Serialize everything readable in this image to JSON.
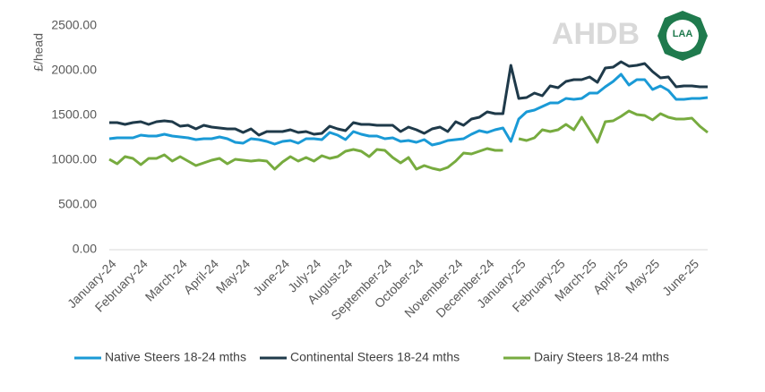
{
  "chart_data": {
    "type": "line",
    "y_label": "£/head",
    "watermark": "AHDB",
    "badge": "LAA",
    "categories": [
      "January-24",
      null,
      null,
      null,
      "February-24",
      null,
      null,
      null,
      null,
      "March-24",
      null,
      null,
      null,
      "April-24",
      null,
      null,
      null,
      "May-24",
      null,
      null,
      null,
      null,
      "June-24",
      null,
      null,
      null,
      "July-24",
      null,
      null,
      null,
      "August-24",
      null,
      null,
      null,
      null,
      "September-24",
      null,
      null,
      null,
      "October-24",
      null,
      null,
      null,
      null,
      "November-24",
      null,
      null,
      null,
      "December-24",
      null,
      null,
      null,
      "January-25",
      null,
      null,
      null,
      null,
      "February-25",
      null,
      null,
      null,
      "March-25",
      null,
      null,
      null,
      "April-25",
      null,
      null,
      null,
      "May-25",
      null,
      null,
      null,
      null,
      "June-25",
      null,
      null
    ],
    "series": [
      {
        "name": "Native Steers 18-24 mths",
        "color": "#1a9ad6",
        "values": [
          1240,
          1250,
          1250,
          1250,
          1280,
          1270,
          1270,
          1290,
          1270,
          1260,
          1250,
          1230,
          1240,
          1240,
          1260,
          1240,
          1200,
          1190,
          1240,
          1230,
          1210,
          1180,
          1210,
          1220,
          1190,
          1240,
          1240,
          1230,
          1310,
          1280,
          1230,
          1320,
          1290,
          1270,
          1270,
          1240,
          1250,
          1210,
          1220,
          1200,
          1230,
          1170,
          1190,
          1220,
          1230,
          1240,
          1290,
          1330,
          1310,
          1340,
          1360,
          1210,
          1460,
          1540,
          1560,
          1600,
          1640,
          1640,
          1690,
          1680,
          1690,
          1750,
          1750,
          1820,
          1880,
          1960,
          1840,
          1900,
          1900,
          1790,
          1830,
          1780,
          1680,
          1680,
          1690,
          1690,
          1700
        ]
      },
      {
        "name": "Continental Steers 18-24 mths",
        "color": "#1f3a4a",
        "values": [
          1420,
          1420,
          1400,
          1420,
          1430,
          1400,
          1430,
          1440,
          1430,
          1380,
          1390,
          1350,
          1390,
          1370,
          1360,
          1350,
          1350,
          1310,
          1350,
          1280,
          1320,
          1320,
          1320,
          1340,
          1310,
          1320,
          1290,
          1300,
          1380,
          1350,
          1330,
          1420,
          1400,
          1400,
          1390,
          1390,
          1390,
          1320,
          1370,
          1340,
          1300,
          1350,
          1370,
          1320,
          1430,
          1390,
          1460,
          1480,
          1540,
          1520,
          1520,
          2060,
          1690,
          1700,
          1750,
          1720,
          1830,
          1810,
          1880,
          1900,
          1900,
          1930,
          1870,
          2030,
          2040,
          2100,
          2050,
          2060,
          2080,
          1990,
          1920,
          1930,
          1820,
          1830,
          1830,
          1820,
          1820
        ]
      },
      {
        "name": "Dairy Steers 18-24 mths",
        "color": "#77ab3f",
        "values": [
          1010,
          960,
          1040,
          1020,
          950,
          1020,
          1020,
          1060,
          990,
          1040,
          990,
          940,
          970,
          1000,
          1020,
          960,
          1010,
          1000,
          990,
          1000,
          990,
          900,
          980,
          1040,
          990,
          1030,
          990,
          1050,
          1020,
          1040,
          1100,
          1120,
          1100,
          1040,
          1120,
          1110,
          1030,
          970,
          1030,
          900,
          940,
          910,
          890,
          920,
          990,
          1080,
          1070,
          1100,
          1130,
          1110,
          1110,
          null,
          1240,
          1220,
          1250,
          1340,
          1320,
          1340,
          1400,
          1340,
          1480,
          1340,
          1200,
          1430,
          1440,
          1490,
          1550,
          1510,
          1500,
          1450,
          1520,
          1480,
          1460,
          1460,
          1470,
          1380,
          1310
        ]
      }
    ],
    "ylim": [
      0,
      2500
    ],
    "yticks": [
      {
        "value": 0,
        "label": "0.00"
      },
      {
        "value": 500,
        "label": "500.00"
      },
      {
        "value": 1000,
        "label": "1000.00"
      },
      {
        "value": 1500,
        "label": "1500.00"
      },
      {
        "value": 2000,
        "label": "2000.00"
      },
      {
        "value": 2500,
        "label": "2500.00"
      }
    ],
    "grid": false,
    "legend": "bottom"
  }
}
